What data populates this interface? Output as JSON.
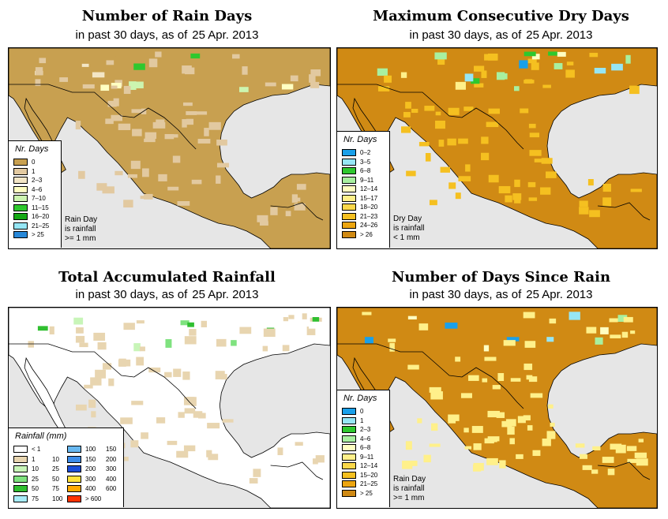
{
  "panels": [
    {
      "title": "Number of Rain Days",
      "subtitle_prefix": "in past 30 days, as of",
      "date": "25 Apr. 2013",
      "legend_title": "Nr. Days",
      "legend": [
        {
          "label": "0",
          "color": "#c8a050"
        },
        {
          "label": "1",
          "color": "#e2c9a0"
        },
        {
          "label": "2–3",
          "color": "#f3e6c6"
        },
        {
          "label": "4–6",
          "color": "#ffffc2"
        },
        {
          "label": "7–10",
          "color": "#ccf5b0"
        },
        {
          "label": "11–15",
          "color": "#2ec82e"
        },
        {
          "label": "16–20",
          "color": "#15a815"
        },
        {
          "label": "21–25",
          "color": "#96e6f5"
        },
        {
          "label": "> 25",
          "color": "#2888d8"
        }
      ],
      "note": [
        "Rain Day",
        "is rainfall",
        ">= 1 mm"
      ]
    },
    {
      "title": "Maximum Consecutive Dry Days",
      "subtitle_prefix": "in past 30 days, as of",
      "date": "25 Apr. 2013",
      "legend_title": "Nr. Days",
      "legend": [
        {
          "label": "0–2",
          "color": "#1aa0ea"
        },
        {
          "label": "3–5",
          "color": "#96e6f5"
        },
        {
          "label": "6–8",
          "color": "#2ec82e"
        },
        {
          "label": "9–11",
          "color": "#a8f0a0"
        },
        {
          "label": "12–14",
          "color": "#ffffc2"
        },
        {
          "label": "15–17",
          "color": "#fff08a"
        },
        {
          "label": "18–20",
          "color": "#fbd84a"
        },
        {
          "label": "21–23",
          "color": "#f5c020"
        },
        {
          "label": "24–26",
          "color": "#eca510"
        },
        {
          "label": "> 26",
          "color": "#d08a14"
        }
      ],
      "note": [
        "Dry Day",
        "is rainfall",
        "< 1 mm"
      ]
    },
    {
      "title": "Total Accumulated Rainfall",
      "subtitle_prefix": "in past 30 days, as of",
      "date": "25 Apr. 2013",
      "legend_title": "Rainfall (mm)",
      "legend": [
        {
          "lo": "< 1",
          "hi": "",
          "color": "#ffffff"
        },
        {
          "lo": "1",
          "hi": "10",
          "color": "#e8d5b0"
        },
        {
          "lo": "10",
          "hi": "25",
          "color": "#c8f5b8"
        },
        {
          "lo": "25",
          "hi": "50",
          "color": "#7fe27f"
        },
        {
          "lo": "50",
          "hi": "75",
          "color": "#30bf30"
        },
        {
          "lo": "75",
          "hi": "100",
          "color": "#a8ecf8"
        },
        {
          "lo": "100",
          "hi": "150",
          "color": "#68b8f0"
        },
        {
          "lo": "150",
          "hi": "200",
          "color": "#3c8ce8"
        },
        {
          "lo": "200",
          "hi": "300",
          "color": "#1a4ed8"
        },
        {
          "lo": "300",
          "hi": "400",
          "color": "#ffe23c"
        },
        {
          "lo": "400",
          "hi": "600",
          "color": "#ffaa00"
        },
        {
          "lo": "> 600",
          "hi": "",
          "color": "#ff3300"
        }
      ]
    },
    {
      "title": "Number of Days Since Rain",
      "subtitle_prefix": "in past 30 days, as of",
      "date": "25 Apr. 2013",
      "legend_title": "Nr. Days",
      "legend": [
        {
          "label": "0",
          "color": "#1aa0ea"
        },
        {
          "label": "1",
          "color": "#96e6f5"
        },
        {
          "label": "2–3",
          "color": "#2ec82e"
        },
        {
          "label": "4–6",
          "color": "#a8f0a0"
        },
        {
          "label": "6–8",
          "color": "#ffffc2"
        },
        {
          "label": "9–11",
          "color": "#fff08a"
        },
        {
          "label": "12–14",
          "color": "#fbd84a"
        },
        {
          "label": "15–20",
          "color": "#f5c020"
        },
        {
          "label": "21–25",
          "color": "#eca510"
        },
        {
          "label": "> 25",
          "color": "#d08a14"
        }
      ],
      "note": [
        "Rain Day",
        "is rainfall",
        ">= 1 mm"
      ]
    }
  ],
  "colors": {
    "ocean": "#e6e6e6",
    "land_base": [
      "#c8a050",
      "#d08a14",
      "#ffffff",
      "#d08a14"
    ],
    "land_accent": [
      "#e2c9a0",
      "#f5c020",
      "#e8d5b0",
      "#fff08a"
    ],
    "border": "#000000"
  }
}
